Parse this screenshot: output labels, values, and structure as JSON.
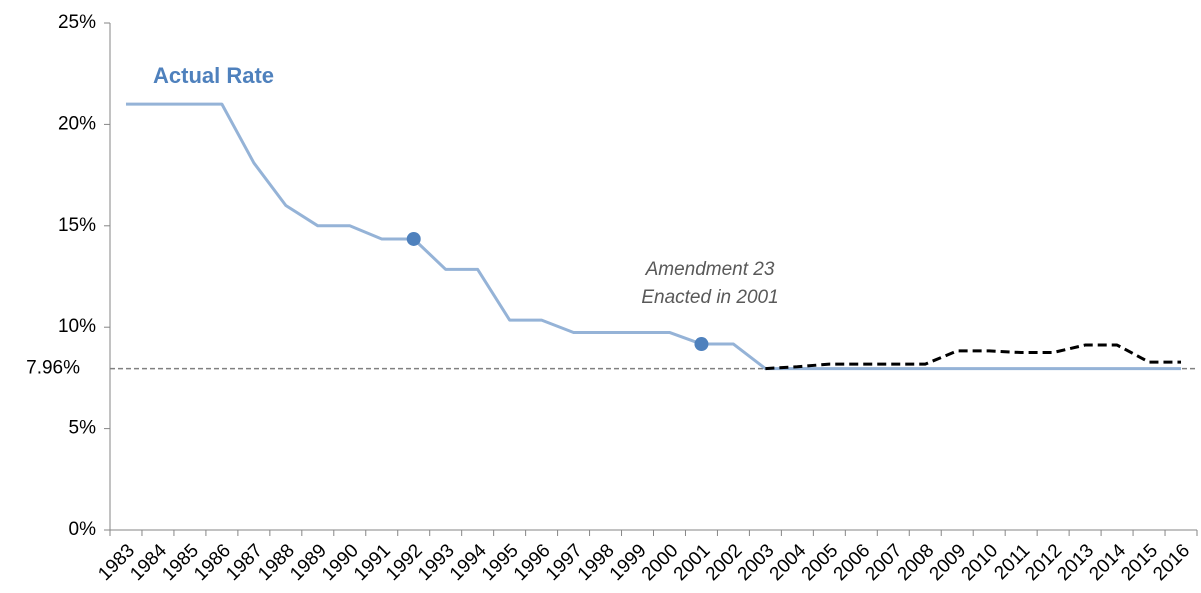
{
  "chart_data": {
    "type": "line",
    "categories": [
      "1983",
      "1984",
      "1985",
      "1986",
      "1987",
      "1988",
      "1989",
      "1990",
      "1991",
      "1992",
      "1993",
      "1994",
      "1995",
      "1996",
      "1997",
      "1998",
      "1999",
      "2000",
      "2001",
      "2002",
      "2003",
      "2004",
      "2005",
      "2006",
      "2007",
      "2008",
      "2009",
      "2010",
      "2011",
      "2012",
      "2013",
      "2014",
      "2015",
      "2016"
    ],
    "series": [
      {
        "name": "Actual Rate",
        "color": "#95b3d7",
        "style": "solid",
        "values": [
          21,
          21,
          21,
          21,
          18.1,
          16,
          15,
          15,
          14.35,
          14.35,
          12.85,
          12.85,
          10.35,
          10.35,
          9.74,
          9.74,
          9.74,
          9.74,
          9.17,
          9.17,
          7.96,
          7.96,
          7.96,
          7.96,
          7.96,
          7.96,
          7.96,
          7.96,
          7.96,
          7.96,
          7.96,
          7.96,
          7.96,
          7.96
        ]
      },
      {
        "color": "#000000",
        "style": "dashed",
        "values": [
          null,
          null,
          null,
          null,
          null,
          null,
          null,
          null,
          null,
          null,
          null,
          null,
          null,
          null,
          null,
          null,
          null,
          null,
          null,
          null,
          7.96,
          8.05,
          8.18,
          8.18,
          8.18,
          8.18,
          8.83,
          8.83,
          8.75,
          8.75,
          9.12,
          9.12,
          8.28,
          8.28
        ]
      },
      {
        "color": "#4f81bd",
        "style": "points",
        "values": [
          null,
          null,
          null,
          null,
          null,
          null,
          null,
          null,
          null,
          14.35,
          null,
          null,
          null,
          null,
          null,
          null,
          null,
          null,
          9.17,
          null,
          null,
          null,
          null,
          null,
          null,
          null,
          null,
          null,
          null,
          null,
          null,
          null,
          null,
          null
        ]
      }
    ],
    "ylim": [
      0,
      25
    ],
    "yticks": [
      {
        "value": 0,
        "label": "0%"
      },
      {
        "value": 5,
        "label": "5%"
      },
      {
        "value": 10,
        "label": "10%"
      },
      {
        "value": 15,
        "label": "15%"
      },
      {
        "value": 20,
        "label": "20%"
      },
      {
        "value": 25,
        "label": "25%"
      }
    ],
    "reference_line": {
      "value": 7.96,
      "label": "7.96%",
      "color": "#808080"
    },
    "annotation": [
      "Amendment 23",
      "Enacted in 2001"
    ]
  }
}
